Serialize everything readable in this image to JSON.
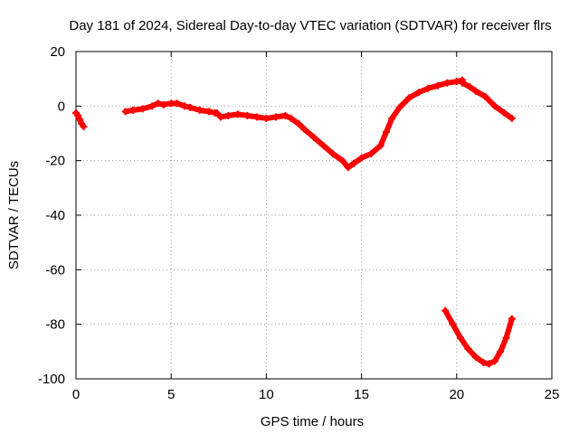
{
  "chart_data": {
    "type": "scatter",
    "title": "Day 181 of 2024, Sidereal Day-to-day VTEC variation (SDTVAR) for receiver flrs",
    "xlabel": "GPS time / hours",
    "ylabel": "SDTVAR / TECUs",
    "xlim": [
      0,
      25
    ],
    "ylim": [
      -100,
      20
    ],
    "x_ticks": [
      0,
      5,
      10,
      15,
      20,
      25
    ],
    "y_ticks": [
      -100,
      -80,
      -60,
      -40,
      -20,
      0,
      20
    ],
    "grid": true,
    "legend": "none",
    "series_color": "#ff0000",
    "series": [
      {
        "name": "segment-1",
        "x": [
          0.0,
          0.1,
          0.2,
          0.3,
          0.4
        ],
        "y": [
          -2.5,
          -3.5,
          -5.0,
          -6.5,
          -7.5
        ]
      },
      {
        "name": "segment-2",
        "x": [
          2.6,
          3.0,
          3.5,
          4.0,
          4.3,
          4.6,
          5.0,
          5.3,
          5.7,
          6.0,
          6.5,
          7.0,
          7.3
        ],
        "y": [
          -2.0,
          -1.5,
          -1.0,
          0.0,
          1.0,
          0.5,
          1.0,
          1.0,
          0.0,
          -0.5,
          -1.5,
          -2.0,
          -2.5
        ]
      },
      {
        "name": "segment-3",
        "x": [
          7.4,
          7.6,
          8.0,
          8.5,
          9.0,
          9.5,
          10.0,
          10.5,
          11.0,
          11.3,
          11.7,
          12.0,
          12.5,
          13.0,
          13.5,
          14.0,
          14.3,
          14.6,
          15.0,
          15.5,
          16.0,
          16.3,
          16.6,
          17.0,
          17.5,
          18.0,
          18.5,
          19.0,
          19.5,
          20.0,
          20.3
        ],
        "y": [
          -2.5,
          -4.0,
          -3.5,
          -3.0,
          -3.5,
          -4.0,
          -4.5,
          -4.0,
          -3.5,
          -4.5,
          -6.5,
          -8.5,
          -11.5,
          -14.5,
          -17.5,
          -20.0,
          -22.5,
          -21.0,
          -19.0,
          -17.5,
          -14.5,
          -9.5,
          -4.5,
          -0.5,
          3.0,
          5.0,
          6.5,
          7.5,
          8.5,
          9.0,
          9.5
        ]
      },
      {
        "name": "segment-4",
        "x": [
          20.3,
          20.7,
          21.0,
          21.5,
          22.0,
          22.5,
          22.9
        ],
        "y": [
          8.5,
          7.0,
          5.5,
          3.5,
          0.0,
          -2.5,
          -4.5
        ]
      },
      {
        "name": "segment-5",
        "x": [
          19.4,
          19.8,
          20.2,
          20.6,
          21.0,
          21.4,
          21.7,
          22.0,
          22.3,
          22.6,
          22.9
        ],
        "y": [
          -75.0,
          -80.0,
          -85.0,
          -89.0,
          -92.0,
          -94.0,
          -94.5,
          -93.5,
          -90.0,
          -85.0,
          -78.0
        ]
      }
    ]
  }
}
